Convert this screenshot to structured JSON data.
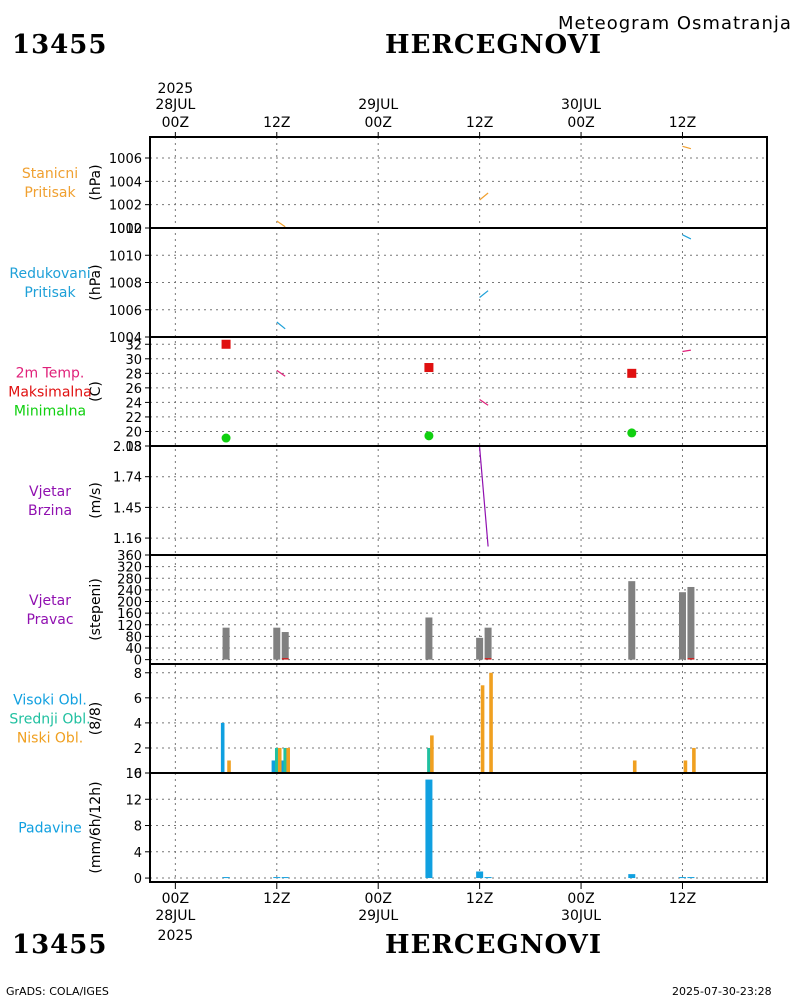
{
  "header": {
    "station_id": "13455",
    "station_name": "HERCEGNOVI",
    "subtitle": "Meteogram Osmatranja"
  },
  "footer": {
    "station_id": "13455",
    "station_name": "HERCEGNOVI",
    "credit": "GrADS: COLA/IGES",
    "timestamp": "2025-07-30-23:28"
  },
  "time_axis": {
    "top_year": "2025",
    "bottom_year": "2025",
    "ticks": [
      {
        "t": 0,
        "hour": "00Z",
        "date": "28JUL"
      },
      {
        "t": 12,
        "hour": "12Z",
        "date": ""
      },
      {
        "t": 24,
        "hour": "00Z",
        "date": "29JUL"
      },
      {
        "t": 36,
        "hour": "12Z",
        "date": ""
      },
      {
        "t": 48,
        "hour": "00Z",
        "date": "30JUL"
      },
      {
        "t": 60,
        "hour": "12Z",
        "date": ""
      }
    ],
    "range_hours": [
      -3,
      70
    ]
  },
  "colors": {
    "pressure": "#f0a030",
    "reduced": "#1ea0d8",
    "tmax": "#e01010",
    "tmin": "#10d010",
    "temp_label": "#e0207a",
    "wind": "#9010b0",
    "wind_dir_bar": "#808080",
    "cloud_high": "#10a0e0",
    "cloud_mid": "#20c0a0",
    "cloud_low": "#f0a020",
    "precip": "#10a0e0"
  },
  "chart_data": [
    {
      "type": "line",
      "panel": "station_pressure",
      "labels": [
        {
          "text": "Stanicni",
          "color": "#f0a030"
        },
        {
          "text": "Pritisak",
          "color": "#f0a030"
        }
      ],
      "ylabel": "(hPa)",
      "ylim": [
        1000,
        1007.8
      ],
      "yticks": [
        1000,
        1002,
        1004,
        1006
      ],
      "ytick_labels": [
        "1000",
        "1002",
        "1004",
        "1006"
      ],
      "series": [
        {
          "name": "stanicni pritisak",
          "color": "#f0a030",
          "segments": [
            [
              [
                12,
                1000.6
              ],
              [
                13,
                1000.1
              ]
            ],
            [
              [
                36,
                1002.4
              ],
              [
                37,
                1003.0
              ]
            ],
            [
              [
                60,
                1007.0
              ],
              [
                61,
                1006.8
              ]
            ]
          ]
        }
      ]
    },
    {
      "type": "line",
      "panel": "reduced_pressure",
      "labels": [
        {
          "text": "Redukovani",
          "color": "#1ea0d8"
        },
        {
          "text": "Pritisak",
          "color": "#1ea0d8"
        }
      ],
      "ylabel": "(hPa)",
      "ylim": [
        1004,
        1012
      ],
      "yticks": [
        1004,
        1006,
        1008,
        1010,
        1012
      ],
      "ytick_labels": [
        "1004",
        "1006",
        "1008",
        "1010",
        "1012"
      ],
      "series": [
        {
          "name": "redukovani pritisak",
          "color": "#1ea0d8",
          "segments": [
            [
              [
                12,
                1005.1
              ],
              [
                13,
                1004.6
              ]
            ],
            [
              [
                36,
                1006.9
              ],
              [
                37,
                1007.4
              ]
            ],
            [
              [
                60,
                1011.5
              ],
              [
                61,
                1011.2
              ]
            ]
          ]
        }
      ]
    },
    {
      "type": "line",
      "panel": "temperature",
      "labels": [
        {
          "text": "2m Temp.",
          "color": "#e0207a"
        },
        {
          "text": "Maksimalna",
          "color": "#e01010"
        },
        {
          "text": "Minimalna",
          "color": "#10d010"
        }
      ],
      "ylabel": "(C)",
      "ylim": [
        18,
        33
      ],
      "yticks": [
        18,
        20,
        22,
        24,
        26,
        28,
        30,
        32
      ],
      "ytick_labels": [
        "18",
        "20",
        "22",
        "24",
        "26",
        "28",
        "30",
        "32"
      ],
      "series": [
        {
          "name": "2m temp",
          "color": "#e0207a",
          "segments": [
            [
              [
                12,
                28.4
              ],
              [
                13,
                27.6
              ]
            ],
            [
              [
                36,
                24.4
              ],
              [
                37,
                23.6
              ]
            ],
            [
              [
                60,
                31.0
              ],
              [
                61,
                31.2
              ]
            ]
          ]
        }
      ],
      "points": [
        {
          "name": "Maksimalna",
          "shape": "square",
          "color": "#e01010",
          "x": [
            6,
            30,
            54
          ],
          "y": [
            32.0,
            28.8,
            28.0
          ]
        },
        {
          "name": "Minimalna",
          "shape": "circle",
          "color": "#10d010",
          "x": [
            6,
            30,
            54
          ],
          "y": [
            19.1,
            19.4,
            19.8
          ]
        }
      ]
    },
    {
      "type": "line",
      "panel": "wind_speed",
      "labels": [
        {
          "text": "Vjetar",
          "color": "#9010b0"
        },
        {
          "text": "Brzina",
          "color": "#9010b0"
        }
      ],
      "ylabel": "(m/s)",
      "ylim": [
        1.0,
        2.03
      ],
      "yticks": [
        1.16,
        1.45,
        1.74,
        2.03
      ],
      "ytick_labels": [
        "1.16",
        "1.45",
        "1.74",
        "2.03"
      ],
      "series": [
        {
          "name": "vjetar brzina",
          "color": "#9010b0",
          "segments": [
            [
              [
                12,
                2.03
              ],
              [
                13,
                2.03
              ]
            ],
            [
              [
                36,
                2.02
              ],
              [
                37,
                1.08
              ]
            ],
            [
              [
                60,
                2.03
              ],
              [
                61,
                2.03
              ]
            ]
          ]
        }
      ]
    },
    {
      "type": "bar",
      "panel": "wind_direction",
      "labels": [
        {
          "text": "Vjetar",
          "color": "#9010b0"
        },
        {
          "text": "Pravac",
          "color": "#9010b0"
        }
      ],
      "ylabel": "(stepeni)",
      "ylim": [
        -15,
        360
      ],
      "yticks": [
        0,
        40,
        80,
        120,
        160,
        200,
        240,
        280,
        320,
        360
      ],
      "ytick_labels": [
        "0",
        "40",
        "80",
        "120",
        "160",
        "200",
        "240",
        "280",
        "320",
        "360"
      ],
      "bars": {
        "color": "#808080",
        "x": [
          6,
          12,
          13,
          30,
          36,
          37,
          54,
          60,
          61
        ],
        "values": [
          110,
          110,
          95,
          145,
          75,
          110,
          270,
          232,
          250
        ]
      },
      "series": [
        {
          "name": "red marks",
          "color": "#e01010",
          "segments": [
            [
              [
                12.6,
                3
              ],
              [
                13.4,
                3
              ]
            ],
            [
              [
                36.6,
                3
              ],
              [
                37.4,
                3
              ]
            ],
            [
              [
                60.6,
                3
              ],
              [
                61.4,
                3
              ]
            ]
          ]
        }
      ]
    },
    {
      "type": "bar",
      "panel": "clouds",
      "labels": [
        {
          "text": "Visoki Obl.",
          "color": "#10a0e0"
        },
        {
          "text": "Srednji Obl.",
          "color": "#20c0a0"
        },
        {
          "text": "Niski Obl.",
          "color": "#f0a020"
        }
      ],
      "ylabel": "(8/8)",
      "ylim": [
        0,
        8.7
      ],
      "yticks": [
        0,
        2,
        4,
        6,
        8
      ],
      "ytick_labels": [
        "0",
        "2",
        "4",
        "6",
        "8"
      ],
      "series_bars": [
        {
          "name": "Visoki Obl.",
          "color": "#10a0e0",
          "offset": -0.4,
          "x": [
            6,
            12,
            13
          ],
          "values": [
            4,
            1,
            1
          ]
        },
        {
          "name": "Srednji Obl.",
          "color": "#20c0a0",
          "offset": 0,
          "x": [
            12,
            13,
            30
          ],
          "values": [
            2,
            2,
            2
          ]
        },
        {
          "name": "Niski Obl.",
          "color": "#f0a020",
          "offset": 0.35,
          "x": [
            6,
            12,
            13,
            30,
            36,
            37,
            54,
            60,
            61
          ],
          "values": [
            1,
            2,
            2,
            3,
            7,
            8,
            1,
            1,
            2
          ]
        }
      ]
    },
    {
      "type": "bar",
      "panel": "precipitation",
      "labels": [
        {
          "text": "Padavine",
          "color": "#10a0e0"
        }
      ],
      "ylabel": "(mm/6h/12h)",
      "ylim": [
        -0.6,
        16
      ],
      "yticks": [
        0,
        4,
        8,
        12,
        16
      ],
      "ytick_labels": [
        "0",
        "4",
        "8",
        "12",
        "16"
      ],
      "bars": {
        "color": "#10a0e0",
        "x": [
          6,
          12,
          13,
          30,
          36,
          37,
          54,
          60,
          61
        ],
        "values": [
          0.15,
          0.15,
          0.15,
          15,
          1.0,
          0.15,
          0.6,
          0.15,
          0.15
        ]
      }
    }
  ]
}
